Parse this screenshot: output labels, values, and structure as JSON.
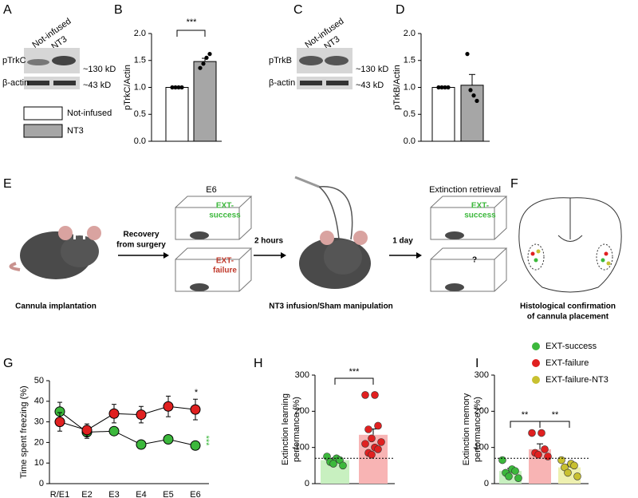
{
  "blots": [
    {
      "panel": "A",
      "lanes": [
        "Not-infused",
        "NT3"
      ],
      "rows": [
        "pTrkC",
        "β-actin"
      ],
      "sizes": [
        "~130 kD",
        "~43 kD"
      ]
    },
    {
      "panel": "C",
      "lanes": [
        "Not-infused",
        "NT3"
      ],
      "rows": [
        "pTrkB",
        "β-actin"
      ],
      "sizes": [
        "~130 kD",
        "~43 kD"
      ]
    }
  ],
  "schematic": {
    "panel": "E",
    "implant": "Cannula implantation",
    "recovery": [
      "Recovery",
      "from surgery"
    ],
    "day": "E6",
    "success": [
      "EXT-",
      "success"
    ],
    "failure": [
      "EXT-",
      "failure"
    ],
    "delay1": "2 hours",
    "infusion": "NT3 infusion/Sham manipulation",
    "delay2": "1 day",
    "retrieval": "Extinction retrieval",
    "success2": [
      "EXT-",
      "success"
    ],
    "unknown": "?"
  },
  "histology": {
    "panel": "F",
    "caption": [
      "Histological confirmation",
      "of cannula placement"
    ]
  },
  "chart_data": [
    {
      "type": "bar",
      "panel": "B",
      "ylabel": "pTrkC/Actin",
      "categories": [
        "Not-infused",
        "NT3"
      ],
      "colors": [
        "#ffffff",
        "#a6a6a6"
      ],
      "point_colors": [
        "#000000",
        "#000000"
      ],
      "values": [
        1.0,
        1.48
      ],
      "errors": [
        0,
        0.06
      ],
      "points": [
        [
          1.0,
          1.0,
          1.0,
          1.0
        ],
        [
          1.36,
          1.44,
          1.55,
          1.62
        ]
      ],
      "ylim": [
        0,
        2
      ],
      "yticks": [
        {
          "value": 0,
          "label": "0.0"
        },
        0.5,
        {
          "value": 1,
          "label": "1.0"
        },
        1.5,
        {
          "value": 2,
          "label": "2.0"
        }
      ],
      "annotations": [
        "***"
      ]
    },
    {
      "type": "bar",
      "panel": "D",
      "ylabel": "pTrkB/Actin",
      "colors": [
        "#ffffff",
        "#a6a6a6"
      ],
      "point_colors": [
        "#000000",
        "#000000"
      ],
      "values": [
        1.0,
        1.04
      ],
      "errors": [
        0,
        0.2
      ],
      "points": [
        [
          1.0,
          1.0,
          1.0,
          1.0
        ],
        [
          1.62,
          0.95,
          0.85,
          0.75
        ]
      ],
      "ylim": [
        0,
        2
      ],
      "yticks": [
        {
          "value": 0,
          "label": "0.0"
        },
        0.5,
        {
          "value": 1,
          "label": "1.0"
        },
        1.5,
        {
          "value": 2,
          "label": "2.0"
        }
      ],
      "annotations": []
    },
    {
      "type": "line",
      "panel": "G",
      "ylabel": "Time spent freezing (%)",
      "categories": [
        "R/E1",
        "E2",
        "E3",
        "E4",
        "E5",
        "E6"
      ],
      "series": [
        {
          "color": "#3cb83c",
          "values": [
            35,
            25,
            25.5,
            19,
            21.5,
            18.5
          ],
          "errors": [
            4.5,
            3,
            1.5,
            1.5,
            2,
            1
          ]
        },
        {
          "color": "#e02020",
          "values": [
            30,
            26,
            34,
            33.5,
            37.5,
            36
          ],
          "errors": [
            4.5,
            3,
            4.5,
            4,
            5,
            5
          ]
        }
      ],
      "ylim": [
        0,
        50
      ],
      "yticks": [
        0,
        10,
        20,
        30,
        40,
        50
      ],
      "annotations": [
        "*",
        "***"
      ]
    },
    {
      "type": "bar",
      "panel": "H",
      "ylabel": [
        "Extinction learning",
        "performance (%)"
      ],
      "colors": [
        "#c8f0c0",
        "#f8b4b4"
      ],
      "point_colors": [
        "#3cb83c",
        "#e02020"
      ],
      "values": [
        65,
        135
      ],
      "errors": [
        6,
        16
      ],
      "points": [
        [
          75,
          70,
          65,
          60,
          55,
          50
        ],
        [
          245,
          245,
          160,
          150,
          125,
          115,
          110,
          100,
          95,
          85,
          80
        ]
      ],
      "reference_line": 70,
      "ylim": [
        0,
        300
      ],
      "yticks": [
        0,
        100,
        200,
        300
      ],
      "annotations": [
        "***"
      ]
    },
    {
      "type": "bar",
      "panel": "I",
      "ylabel": [
        "Extinction memory",
        "performance (%)"
      ],
      "categories": [
        "EXT-success",
        "EXT-failure",
        "EXT-failure-NT3"
      ],
      "legend": true,
      "colors": [
        "#c8f0c0",
        "#f8b4b4",
        "#eef0b0"
      ],
      "point_colors": [
        "#3cb83c",
        "#e02020",
        "#c8c030"
      ],
      "values": [
        35,
        95,
        45
      ],
      "errors": [
        7,
        15,
        8
      ],
      "points": [
        [
          65,
          40,
          35,
          30,
          20,
          15
        ],
        [
          140,
          140,
          95,
          85,
          80,
          75
        ],
        [
          65,
          55,
          50,
          45,
          30,
          20
        ]
      ],
      "reference_line": 70,
      "ylim": [
        0,
        300
      ],
      "yticks": [
        0,
        100,
        200,
        300
      ],
      "annotations": [
        "**",
        "**"
      ]
    }
  ]
}
